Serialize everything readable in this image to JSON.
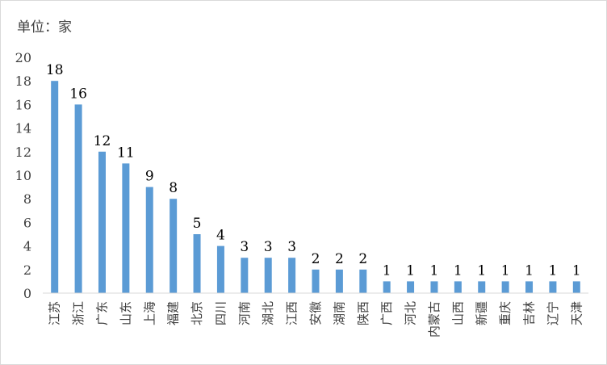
{
  "unit_label": "单位：家",
  "chart_data": {
    "type": "bar",
    "title": "",
    "xlabel": "",
    "ylabel": "",
    "ylim": [
      0,
      20
    ],
    "yticks": [
      0,
      2,
      4,
      6,
      8,
      10,
      12,
      14,
      16,
      18,
      20
    ],
    "grid": false,
    "bar_color": "#5b9bd5",
    "categories": [
      "江苏",
      "浙江",
      "广东",
      "山东",
      "上海",
      "福建",
      "北京",
      "四川",
      "河南",
      "湖北",
      "江西",
      "安徽",
      "湖南",
      "陕西",
      "广西",
      "河北",
      "内蒙古",
      "山西",
      "新疆",
      "重庆",
      "吉林",
      "辽宁",
      "天津"
    ],
    "values": [
      18,
      16,
      12,
      11,
      9,
      8,
      5,
      4,
      3,
      3,
      3,
      2,
      2,
      2,
      1,
      1,
      1,
      1,
      1,
      1,
      1,
      1,
      1
    ]
  }
}
